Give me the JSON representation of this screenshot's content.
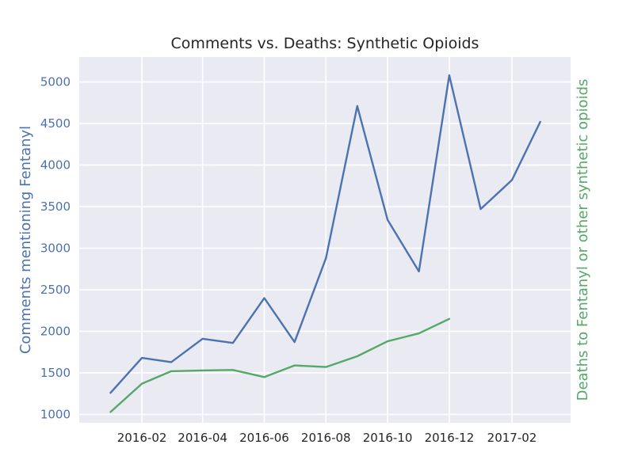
{
  "chart_data": {
    "type": "line",
    "title": "Comments vs. Deaths: Synthetic Opioids",
    "ylabel_left": "Comments mentioning Fentanyl",
    "ylabel_right": "Deaths to Fentanyl or other synthetic opioids",
    "xlim": [
      "2015-12-01",
      "2017-03-31"
    ],
    "ylim_left": [
      900,
      5300
    ],
    "x_ticks": [
      "2016-02",
      "2016-04",
      "2016-06",
      "2016-08",
      "2016-10",
      "2016-12",
      "2017-02"
    ],
    "x_tick_dates": [
      "2016-02-01",
      "2016-04-01",
      "2016-06-01",
      "2016-08-01",
      "2016-10-01",
      "2016-12-01",
      "2017-02-01"
    ],
    "y_ticks_left": [
      1000,
      1500,
      2000,
      2500,
      3000,
      3500,
      4000,
      4500,
      5000
    ],
    "grid": true,
    "series": [
      {
        "axis": "left",
        "color": "#4c72b0",
        "x": [
          "2016-01-01",
          "2016-02-01",
          "2016-03-01",
          "2016-04-01",
          "2016-05-01",
          "2016-06-01",
          "2016-07-01",
          "2016-08-01",
          "2016-09-01",
          "2016-10-01",
          "2016-11-01",
          "2016-12-01",
          "2017-01-01",
          "2017-02-01",
          "2017-03-01"
        ],
        "values": [
          1260,
          1680,
          1630,
          1910,
          1860,
          2400,
          1870,
          2880,
          4710,
          3340,
          2720,
          5080,
          3470,
          3820,
          4520
        ]
      },
      {
        "axis": "left",
        "color": "#55a868",
        "x": [
          "2016-01-01",
          "2016-02-01",
          "2016-03-01",
          "2016-04-01",
          "2016-05-01",
          "2016-06-01",
          "2016-07-01",
          "2016-08-01",
          "2016-09-01",
          "2016-10-01",
          "2016-11-01",
          "2016-12-01"
        ],
        "values": [
          1030,
          1370,
          1520,
          1530,
          1535,
          1450,
          1590,
          1570,
          1700,
          1880,
          1975,
          2150
        ]
      }
    ],
    "left_axis_color": "#4c72b0",
    "right_axis_color": "#55a868",
    "plot_background": "#eaeaf2",
    "grid_color": "#ffffff",
    "text_color": "#262626"
  }
}
